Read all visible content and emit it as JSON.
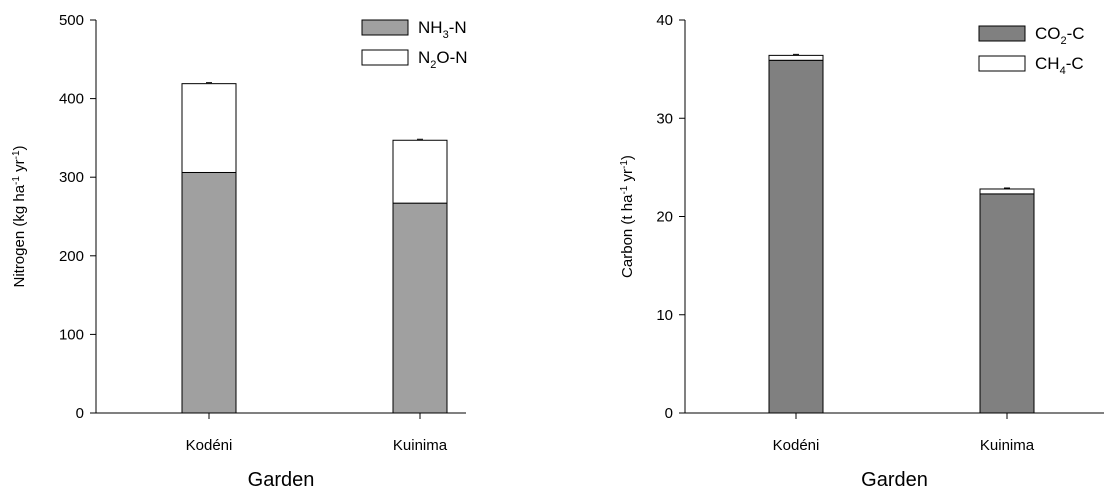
{
  "chart_data": [
    {
      "type": "bar",
      "stacked": true,
      "categories": [
        "Kodéni",
        "Kuinima"
      ],
      "series": [
        {
          "name": "NH3-N",
          "values": [
            306,
            267
          ],
          "color": "#a0a0a0"
        },
        {
          "name": "N2O-N",
          "values": [
            113,
            80
          ],
          "color": "#ffffff"
        }
      ],
      "xlabel": "Garden",
      "ylabel": "Nitrogen (kg ha-1 yr-1)",
      "ylim": [
        0,
        500
      ],
      "yticks": [
        0,
        100,
        200,
        300,
        400,
        500
      ],
      "legend": {
        "placement": "top-right",
        "labels": [
          {
            "base": "NH",
            "sub": "3",
            "tail": "-N"
          },
          {
            "base": "N",
            "sub": "2",
            "tail": "O-N"
          }
        ]
      },
      "ylabel_parts": {
        "pre": "Nitrogen (kg ha",
        "sup1": "-1",
        "mid": " yr",
        "sup2": "-1",
        "post": ")"
      }
    },
    {
      "type": "bar",
      "stacked": true,
      "categories": [
        "Kodéni",
        "Kuinima"
      ],
      "series": [
        {
          "name": "CO2-C",
          "values": [
            35.9,
            22.3
          ],
          "color": "#808080"
        },
        {
          "name": "CH4-C",
          "values": [
            0.5,
            0.5
          ],
          "color": "#ffffff"
        }
      ],
      "xlabel": "Garden",
      "ylabel": "Carbon (t ha-1 yr-1)",
      "ylim": [
        0,
        40
      ],
      "yticks": [
        0,
        10,
        20,
        30,
        40
      ],
      "legend": {
        "placement": "top-right",
        "labels": [
          {
            "base": "CO",
            "sub": "2",
            "tail": "-C"
          },
          {
            "base": "CH",
            "sub": "4",
            "tail": "-C"
          }
        ]
      },
      "ylabel_parts": {
        "pre": "Carbon (t ha",
        "sup1": "-1",
        "mid": " yr",
        "sup2": "-1",
        "post": ")"
      }
    }
  ]
}
